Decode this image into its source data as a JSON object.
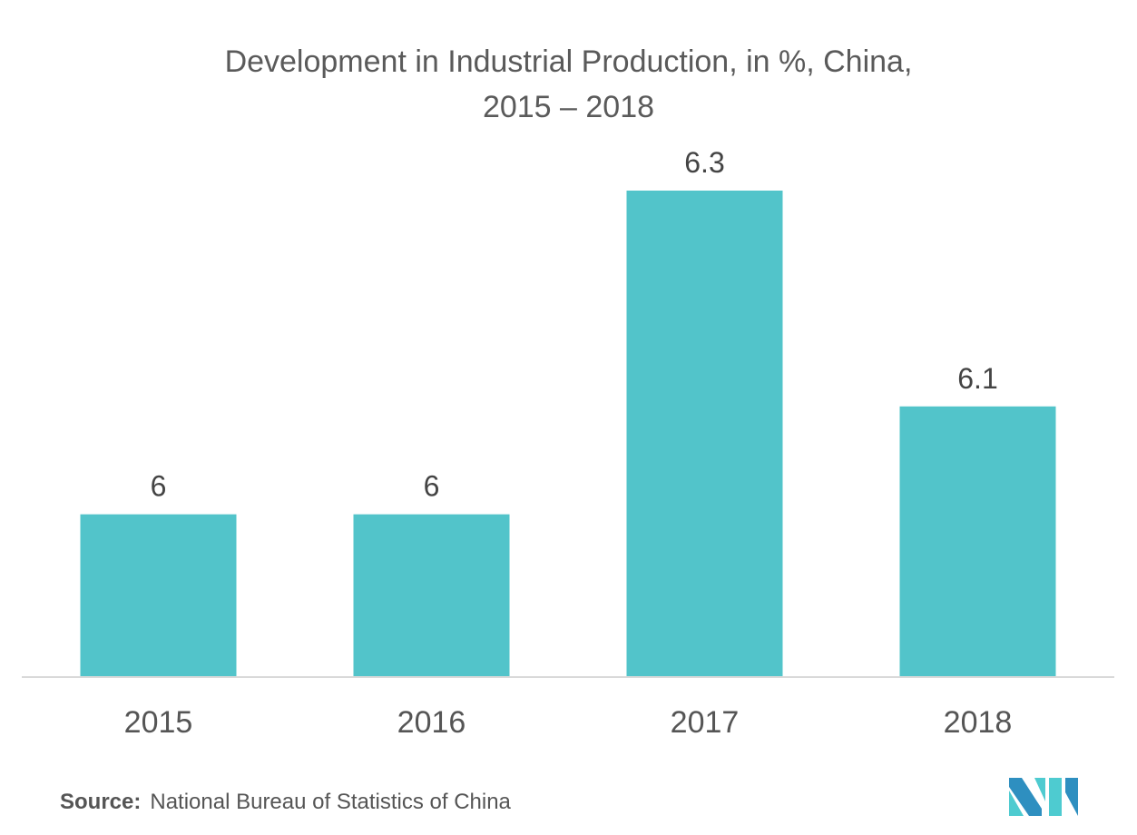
{
  "chart_data": {
    "type": "bar",
    "title": "Development in Industrial Production, in %, China,",
    "subtitle": "2015 – 2018",
    "categories": [
      "2015",
      "2016",
      "2017",
      "2018"
    ],
    "values": [
      6,
      6,
      6.3,
      6.1
    ],
    "labels": [
      "6",
      "6",
      "6.3",
      "6.1"
    ],
    "xlabel": "",
    "ylabel": "",
    "ylim": [
      5.85,
      6.3
    ],
    "grid": false,
    "legend": "none",
    "bar_color": "#52c4ca"
  },
  "source": {
    "label": "Source:",
    "text": "National Bureau of Statistics of China"
  },
  "logo": {
    "icon": "mordor-intelligence-logo-icon",
    "colors": [
      "#2e8fc0",
      "#4ecbd0"
    ]
  }
}
